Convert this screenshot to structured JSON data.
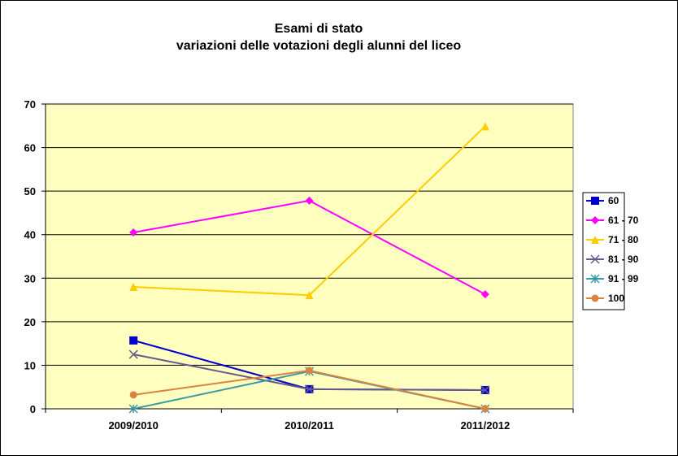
{
  "chart_data": {
    "type": "line",
    "title": "Esami di stato",
    "subtitle": "variazioni delle votazioni degli alunni del liceo",
    "categories": [
      "2009/2010",
      "2010/2011",
      "2011/2012"
    ],
    "series": [
      {
        "name": "60",
        "color": "#0000cc",
        "marker": "square",
        "values": [
          15.7,
          4.5,
          4.3
        ]
      },
      {
        "name": "61 - 70",
        "color": "#ff00ff",
        "marker": "diamond",
        "values": [
          40.5,
          47.8,
          26.3
        ]
      },
      {
        "name": "71 - 80",
        "color": "#ffcc00",
        "marker": "triangle",
        "values": [
          28,
          26.1,
          64.9
        ]
      },
      {
        "name": "81 - 90",
        "color": "#665a8c",
        "marker": "x",
        "values": [
          12.5,
          4.5,
          4.3
        ]
      },
      {
        "name": "91 - 99",
        "color": "#3a9aa8",
        "marker": "star",
        "values": [
          0,
          8.6,
          0
        ]
      },
      {
        "name": "100",
        "color": "#d9843f",
        "marker": "circle",
        "values": [
          3.2,
          8.8,
          0
        ]
      }
    ],
    "ylim": [
      0,
      70
    ],
    "yticks": [
      0,
      10,
      20,
      30,
      40,
      50,
      60,
      70
    ],
    "grid": true,
    "legend": "right",
    "plot_background": "#ffffc0"
  }
}
